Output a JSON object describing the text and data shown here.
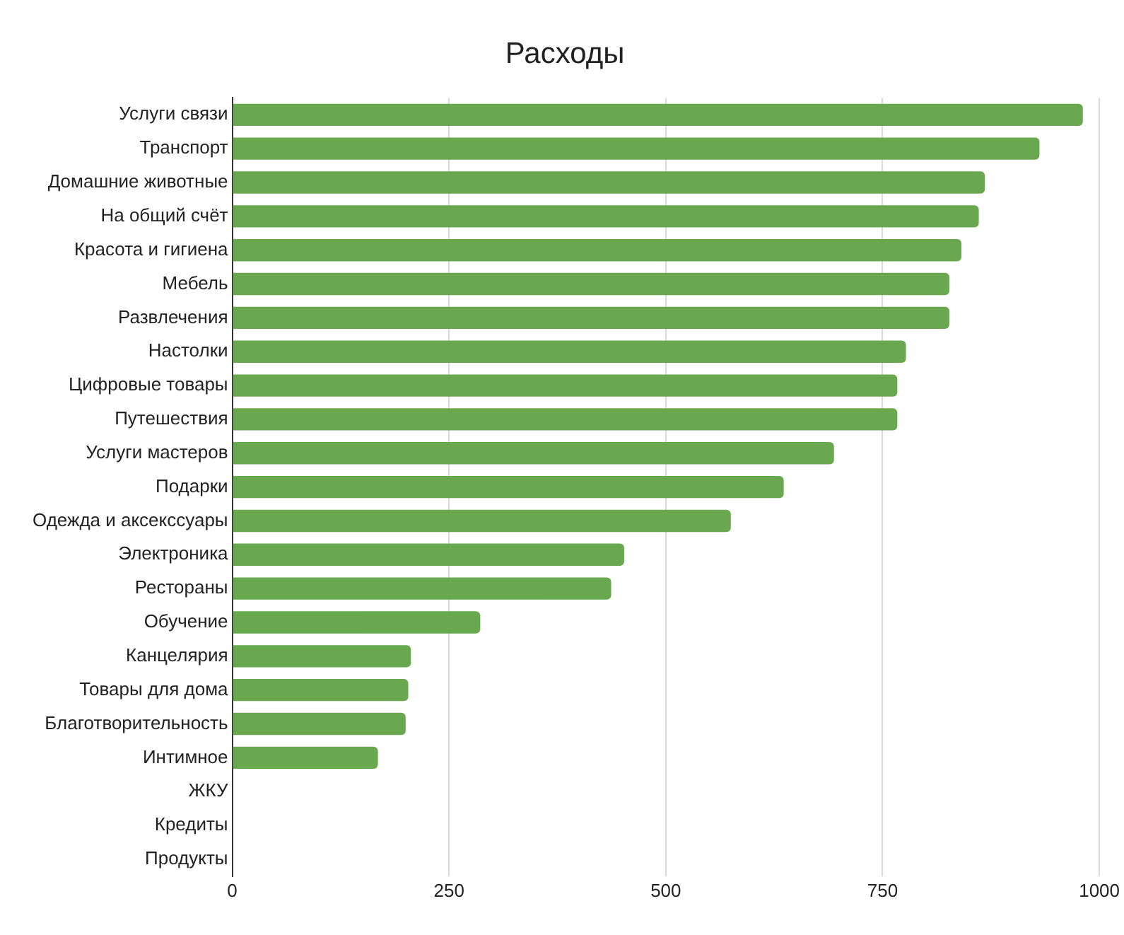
{
  "chart_data": {
    "type": "bar",
    "orientation": "horizontal",
    "title": "Расходы",
    "categories": [
      "Услуги связи",
      "Транспорт",
      "Домашние животные",
      "На общий счёт",
      "Красота и гигиена",
      "Мебель",
      "Развлечения",
      "Настолки",
      "Цифровые товары",
      "Путешествия",
      "Услуги мастеров",
      "Подарки",
      "Одежда и аксекссуары",
      "Электроника",
      "Рестораны",
      "Обучение",
      "Канцелярия",
      "Товары для дома",
      "Благотворительность",
      "Интимное",
      "ЖКУ",
      "Кредиты",
      "Продукты"
    ],
    "values": [
      981,
      931,
      868,
      861,
      841,
      827,
      827,
      777,
      767,
      767,
      694,
      636,
      575,
      452,
      437,
      286,
      206,
      203,
      200,
      168,
      0,
      0,
      0
    ],
    "color": "#6aa84f",
    "xlim": [
      0,
      1000
    ],
    "xticks": [
      0,
      250,
      500,
      750,
      1000
    ],
    "grid": "x",
    "legend": false
  }
}
